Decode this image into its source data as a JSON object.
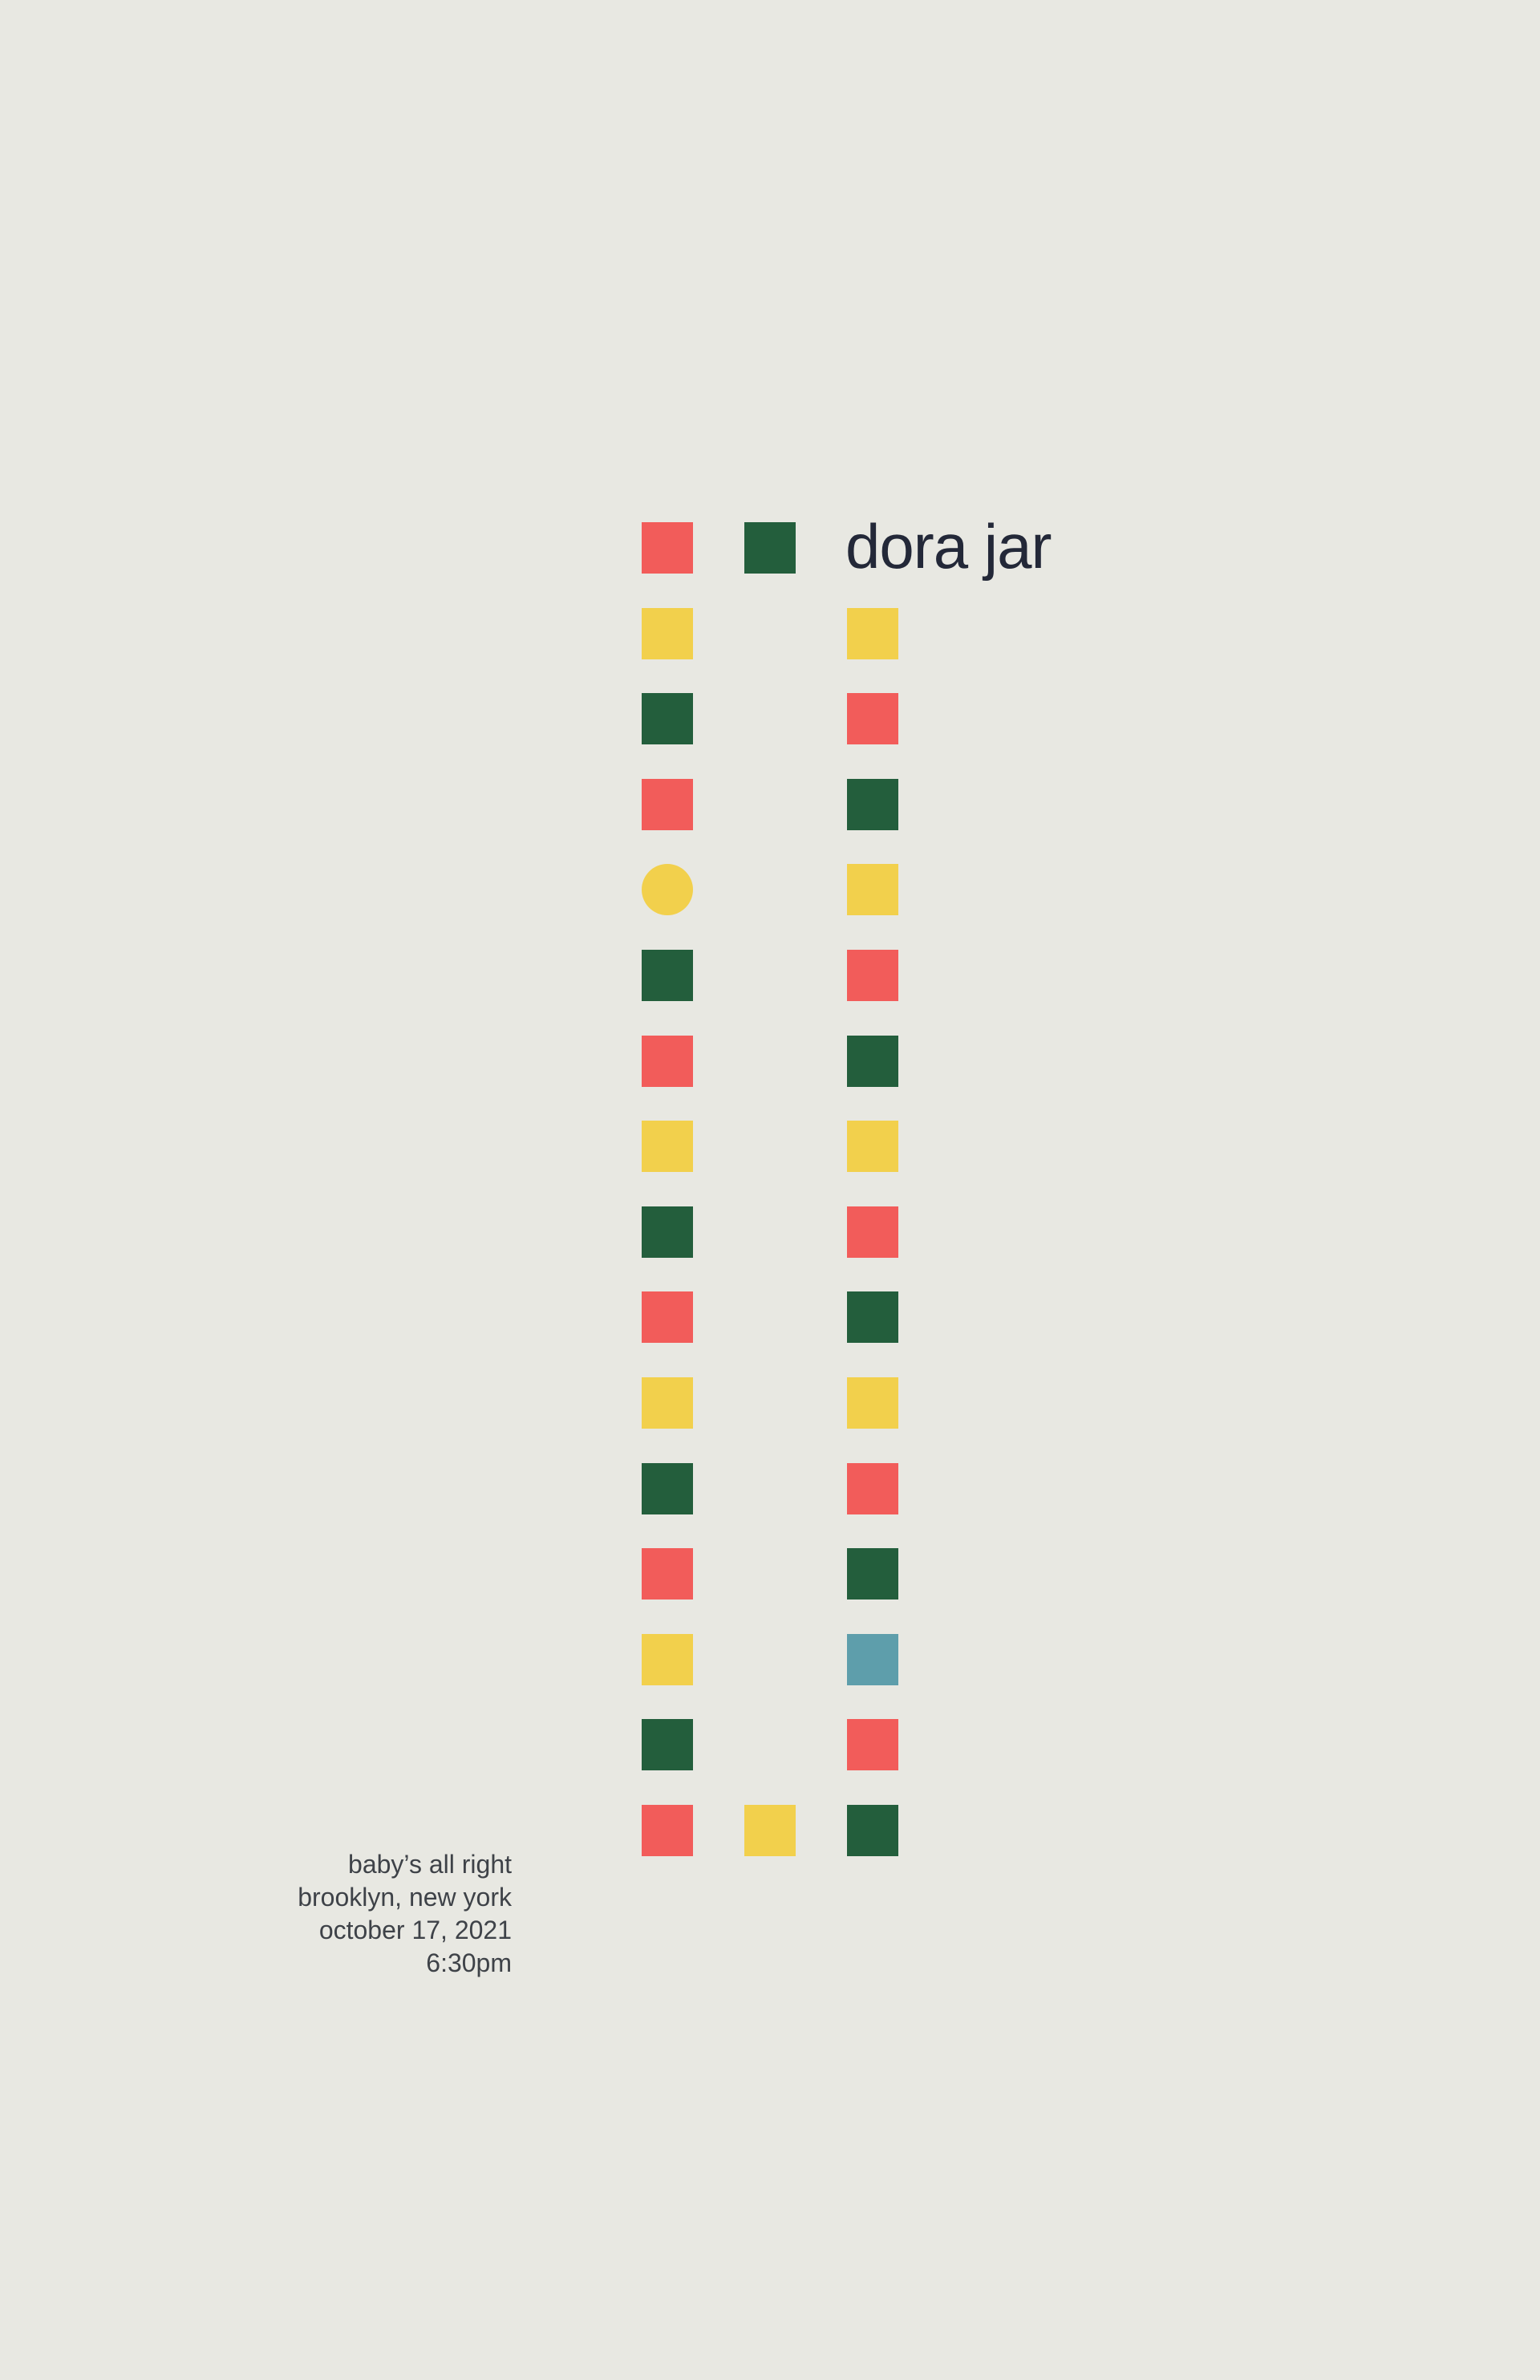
{
  "colors": {
    "background": "#E8E8E2",
    "red": "#F25C5A",
    "green": "#235E3C",
    "yellow": "#F2D04C",
    "teal": "#5E9EAB",
    "text_title": "#232838",
    "text_details": "#3E4248"
  },
  "headline": {
    "artist": "dora jar"
  },
  "event": {
    "venue": "baby’s all right",
    "location": "brooklyn, new york",
    "date": "october 17, 2021",
    "time": "6:30pm"
  },
  "pattern": {
    "left_column": [
      "red",
      "yellow",
      "green",
      "red",
      "yellow-circle",
      "green",
      "red",
      "yellow",
      "green",
      "red",
      "yellow",
      "green",
      "red",
      "yellow",
      "green",
      "red"
    ],
    "middle_top": "green",
    "middle_bottom": "yellow",
    "right_column": [
      "yellow",
      "red",
      "green",
      "yellow",
      "red",
      "green",
      "yellow",
      "red",
      "green",
      "yellow",
      "red",
      "green",
      "teal",
      "red",
      "green"
    ]
  }
}
